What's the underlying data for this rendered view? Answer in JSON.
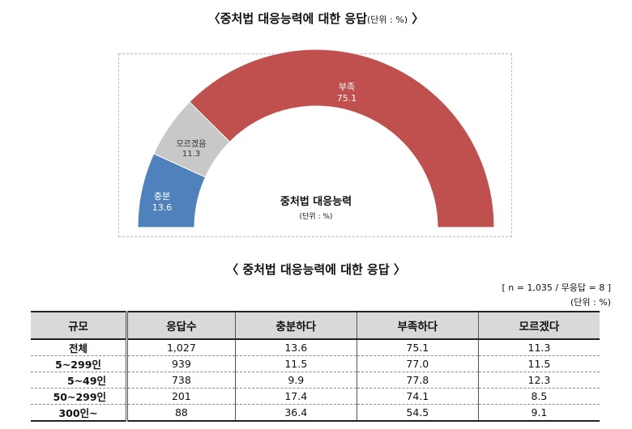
{
  "title_main": "〈중처법 대응능력에 대한 응답",
  "title_unit": "(단위 : %)",
  "title_close": "〉",
  "chart_data": {
    "type": "pie",
    "style": "half-donut",
    "slices": [
      {
        "label": "충분",
        "value": 13.6,
        "color": "#4f81bd"
      },
      {
        "label": "모르겠음",
        "value": 11.3,
        "color": "#c8c8c8"
      },
      {
        "label": "부족",
        "value": 75.1,
        "color": "#c0504d"
      }
    ],
    "center_title": "중처법 대응능력",
    "center_unit": "(단위 : %)"
  },
  "table_title": "〈 중처법 대응능력에 대한 응답 〉",
  "table_note_n": "[ n = 1,035 / 무응답 = 8 ]",
  "table_note_unit": "(단위 : %)",
  "table": {
    "headers": [
      "규모",
      "응답수",
      "충분하다",
      "부족하다",
      "모르겠다"
    ],
    "rows": [
      {
        "label": "전체",
        "values": [
          "1,027",
          "13.6",
          "75.1",
          "11.3"
        ]
      },
      {
        "label": "5~299인",
        "values": [
          "939",
          "11.5",
          "77.0",
          "11.5"
        ]
      },
      {
        "label": "5~49인",
        "values": [
          "738",
          "9.9",
          "77.8",
          "12.3"
        ]
      },
      {
        "label": "50~299인",
        "values": [
          "201",
          "17.4",
          "74.1",
          "8.5"
        ]
      },
      {
        "label": "300인~",
        "values": [
          "88",
          "36.4",
          "54.5",
          "9.1"
        ]
      }
    ]
  }
}
